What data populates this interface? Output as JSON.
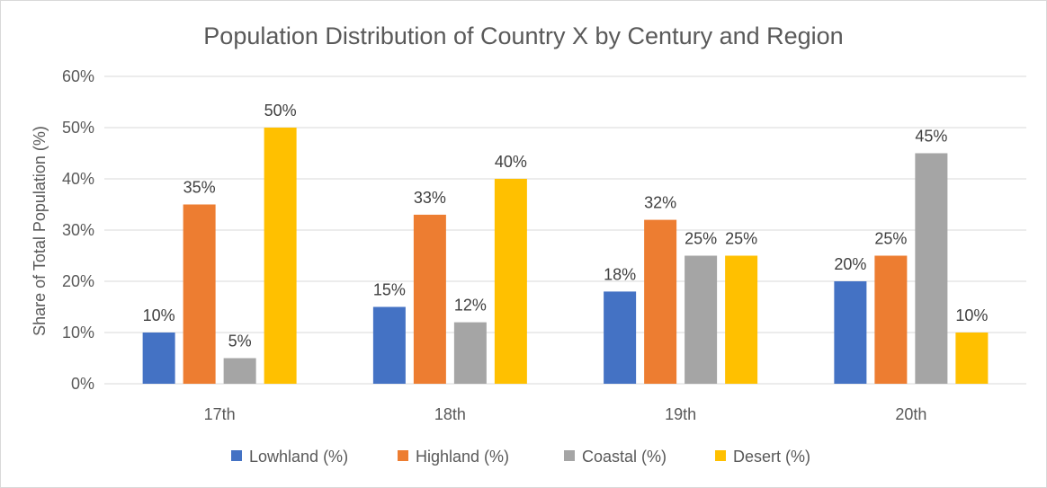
{
  "chart_data": {
    "type": "bar",
    "title": "Population Distribution of Country X by Century and Region",
    "xlabel": "",
    "ylabel": "Share of Total Population (%)",
    "ylim": [
      0,
      60
    ],
    "yticks": [
      "0%",
      "10%",
      "20%",
      "30%",
      "40%",
      "50%",
      "60%"
    ],
    "grid": true,
    "legend_position": "bottom",
    "categories": [
      "17th",
      "18th",
      "19th",
      "20th"
    ],
    "series": [
      {
        "name": "Lowhland (%)",
        "color": "#4472C4",
        "values": [
          10,
          15,
          18,
          20
        ],
        "labels": [
          "10%",
          "15%",
          "18%",
          "20%"
        ]
      },
      {
        "name": "Highland (%)",
        "color": "#ED7D31",
        "values": [
          35,
          33,
          32,
          25
        ],
        "labels": [
          "35%",
          "33%",
          "32%",
          "25%"
        ]
      },
      {
        "name": "Coastal (%)",
        "color": "#A5A5A5",
        "values": [
          5,
          12,
          25,
          45
        ],
        "labels": [
          "5%",
          "12%",
          "25%",
          "45%"
        ]
      },
      {
        "name": "Desert (%)",
        "color": "#FFC000",
        "values": [
          50,
          40,
          25,
          10
        ],
        "labels": [
          "50%",
          "40%",
          "25%",
          "10%"
        ]
      }
    ]
  }
}
